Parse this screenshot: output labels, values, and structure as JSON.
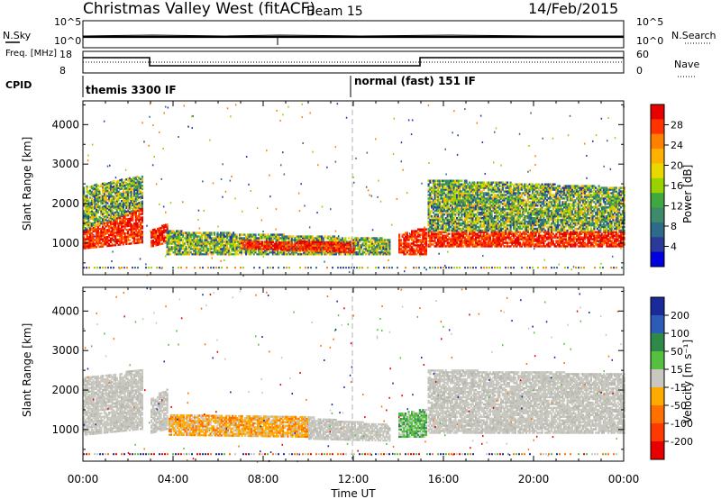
{
  "header": {
    "station": "Christmas Valley West (fitACF)",
    "beam": "Beam 15",
    "date": "14/Feb/2015"
  },
  "strips": {
    "nsky_label": "N.Sky",
    "nsearch_label": "N.Search",
    "nsky_ticks": [
      "10^5",
      "10^0"
    ],
    "nsearch_ticks": [
      "10^5",
      "10^0"
    ],
    "freq_label": "Freq. [MHz]",
    "freq_ticks": [
      "18",
      "8"
    ],
    "nave_label": "Nave",
    "nave_ticks": [
      "60",
      "0"
    ],
    "cpid_label": "CPID",
    "cpid_segments": [
      {
        "label": "themis 3300 IF",
        "start_hour": 0
      },
      {
        "label": "normal (fast) 151 IF",
        "start_hour": 12
      }
    ]
  },
  "power_colorbar": {
    "label": "Power [dB]",
    "ticks": [
      "28",
      "24",
      "20",
      "16",
      "12",
      "8",
      "4"
    ],
    "colors": [
      "#e60000",
      "#ff3300",
      "#ff8000",
      "#ffb000",
      "#e8d800",
      "#9ad200",
      "#3fa83f",
      "#3e8a6a",
      "#2e6a8a",
      "#2a3a9a",
      "#0000e0"
    ]
  },
  "velocity_colorbar": {
    "label": "Velocity [m s⁻¹]",
    "ticks": [
      "200",
      "100",
      "50",
      "15",
      "-15",
      "-50",
      "-100",
      "-200"
    ],
    "colors": [
      "#1a2a9a",
      "#2c5cb8",
      "#2f8a4a",
      "#55c040",
      "#c8c8c0",
      "#ffaa00",
      "#ff7000",
      "#ff3a00",
      "#e80000"
    ]
  },
  "chart_data": [
    {
      "type": "heatmap",
      "name": "power",
      "ylabel": "Slant Range [km]",
      "y_ticks": [
        1000,
        2000,
        3000,
        4000
      ],
      "ylim": [
        200,
        4600
      ],
      "xlim_hours": [
        0,
        24
      ],
      "bands": [
        {
          "t0": 0.0,
          "t1": 2.6,
          "r_lo_0": 850,
          "r_hi_0": 1300,
          "r_lo_1": 1000,
          "r_hi_1": 1900,
          "level": "high"
        },
        {
          "t0": 0.0,
          "t1": 2.6,
          "r_lo_0": 1300,
          "r_hi_0": 2400,
          "r_lo_1": 1900,
          "r_hi_1": 2700,
          "level": "mid"
        },
        {
          "t0": 3.0,
          "t1": 3.7,
          "r_lo_0": 900,
          "r_hi_0": 1300,
          "r_lo_1": 1000,
          "r_hi_1": 1500,
          "level": "high"
        },
        {
          "t0": 3.7,
          "t1": 13.6,
          "r_lo_0": 700,
          "r_hi_0": 1300,
          "r_lo_1": 700,
          "r_hi_1": 1100,
          "level": "mid"
        },
        {
          "t0": 7.0,
          "t1": 12.0,
          "r_lo_0": 850,
          "r_hi_0": 1050,
          "r_lo_1": 750,
          "r_hi_1": 1000,
          "level": "high"
        },
        {
          "t0": 14.0,
          "t1": 15.2,
          "r_lo_0": 700,
          "r_hi_0": 1200,
          "r_lo_1": 700,
          "r_hi_1": 1400,
          "level": "high"
        },
        {
          "t0": 15.3,
          "t1": 24.0,
          "r_lo_0": 900,
          "r_hi_0": 1300,
          "r_lo_1": 900,
          "r_hi_1": 1300,
          "level": "high"
        },
        {
          "t0": 15.3,
          "t1": 24.0,
          "r_lo_0": 1300,
          "r_hi_0": 2600,
          "r_lo_1": 1300,
          "r_hi_1": 2400,
          "level": "mid"
        }
      ]
    },
    {
      "type": "heatmap",
      "name": "velocity",
      "xlabel": "Time UT",
      "ylabel": "Slant Range [km]",
      "y_ticks": [
        1000,
        2000,
        3000,
        4000
      ],
      "ylim": [
        200,
        4600
      ],
      "x_ticks": [
        "00:00",
        "04:00",
        "08:00",
        "12:00",
        "16:00",
        "20:00",
        "00:00"
      ],
      "xlim_hours": [
        0,
        24
      ],
      "bands": [
        {
          "t0": 0.0,
          "t1": 2.6,
          "r_lo_0": 850,
          "r_hi_0": 2300,
          "r_lo_1": 1000,
          "r_hi_1": 2500,
          "level": "ground"
        },
        {
          "t0": 3.0,
          "t1": 3.7,
          "r_lo_0": 900,
          "r_hi_0": 1800,
          "r_lo_1": 1000,
          "r_hi_1": 2000,
          "level": "ground"
        },
        {
          "t0": 3.8,
          "t1": 10.0,
          "r_lo_0": 850,
          "r_hi_0": 1350,
          "r_lo_1": 800,
          "r_hi_1": 1300,
          "level": "neg"
        },
        {
          "t0": 10.0,
          "t1": 13.6,
          "r_lo_0": 750,
          "r_hi_0": 1300,
          "r_lo_1": 700,
          "r_hi_1": 1100,
          "level": "ground"
        },
        {
          "t0": 14.0,
          "t1": 15.2,
          "r_lo_0": 800,
          "r_hi_0": 1400,
          "r_lo_1": 800,
          "r_hi_1": 1500,
          "level": "pos"
        },
        {
          "t0": 15.3,
          "t1": 24.0,
          "r_lo_0": 900,
          "r_hi_0": 2500,
          "r_lo_1": 900,
          "r_hi_1": 2400,
          "level": "ground"
        }
      ]
    }
  ]
}
